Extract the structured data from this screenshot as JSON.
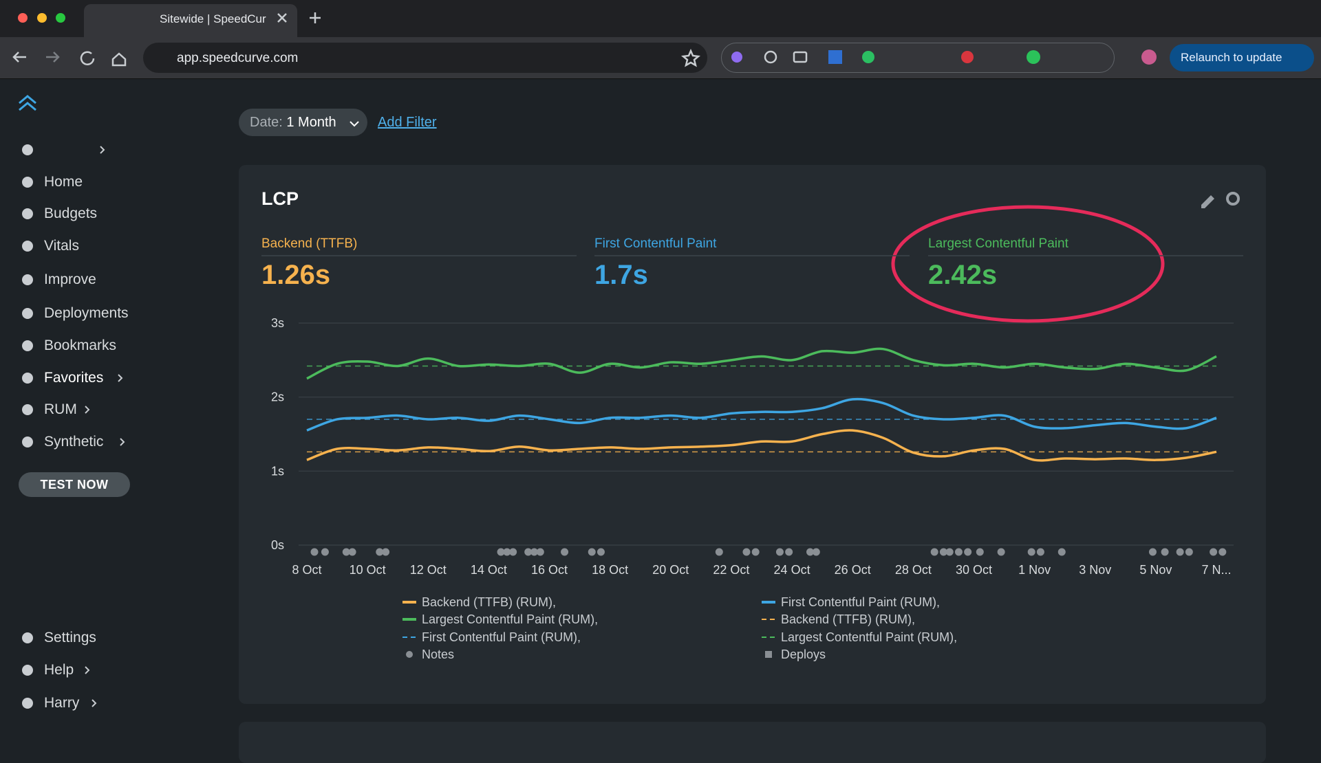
{
  "browser": {
    "tab_title": "Sitewide | SpeedCur",
    "url": "app.speedcurve.com",
    "relaunch": "Relaunch to update"
  },
  "sidebar": {
    "nav": [
      "Home",
      "Budgets",
      "Vitals",
      "Improve",
      "Deployments",
      "Bookmarks",
      "Favorites",
      "RUM",
      "Synthetic"
    ],
    "test_now": "TEST NOW",
    "footer": [
      "Settings",
      "Help",
      "Harry"
    ]
  },
  "filters": {
    "date_label": "Date:",
    "date_value": "1 Month",
    "add_filter": "Add Filter"
  },
  "card": {
    "title": "LCP",
    "metrics": [
      {
        "label": "Backend (TTFB)",
        "value": "1.26s",
        "color": "#f6b24e"
      },
      {
        "label": "First Contentful Paint",
        "value": "1.7s",
        "color": "#3ea6e3"
      },
      {
        "label": "Largest Contentful Paint",
        "value": "2.42s",
        "color": "#4cbb5c"
      }
    ]
  },
  "chart_data": {
    "type": "line",
    "categories": [
      "8 Oct",
      null,
      "10 Oct",
      null,
      "12 Oct",
      null,
      "14 Oct",
      null,
      "16 Oct",
      null,
      "18 Oct",
      null,
      "20 Oct",
      null,
      "22 Oct",
      null,
      "24 Oct",
      null,
      "26 Oct",
      null,
      "28 Oct",
      null,
      "30 Oct",
      null,
      "1 Nov",
      null,
      "3 Nov",
      null,
      "5 Nov",
      null,
      "7 N..."
    ],
    "series": [
      {
        "name": "Backend (TTFB) (RUM),",
        "color": "#f6b24e",
        "values": [
          1.15,
          1.3,
          1.3,
          1.28,
          1.32,
          1.3,
          1.27,
          1.33,
          1.28,
          1.3,
          1.32,
          1.3,
          1.32,
          1.33,
          1.35,
          1.4,
          1.4,
          1.5,
          1.55,
          1.45,
          1.25,
          1.2,
          1.28,
          1.3,
          1.15,
          1.17,
          1.16,
          1.17,
          1.15,
          1.18,
          1.26
        ]
      },
      {
        "name": "First Contentful Paint (RUM),",
        "color": "#3ea6e3",
        "values": [
          1.55,
          1.7,
          1.72,
          1.75,
          1.7,
          1.72,
          1.68,
          1.75,
          1.7,
          1.65,
          1.72,
          1.72,
          1.75,
          1.72,
          1.78,
          1.8,
          1.8,
          1.85,
          1.97,
          1.92,
          1.75,
          1.7,
          1.72,
          1.75,
          1.6,
          1.58,
          1.62,
          1.65,
          1.6,
          1.58,
          1.72
        ]
      },
      {
        "name": "Largest Contentful Paint (RUM),",
        "color": "#4cbb5c",
        "values": [
          2.25,
          2.45,
          2.48,
          2.42,
          2.52,
          2.42,
          2.44,
          2.42,
          2.45,
          2.33,
          2.45,
          2.4,
          2.47,
          2.45,
          2.5,
          2.55,
          2.5,
          2.62,
          2.6,
          2.65,
          2.5,
          2.43,
          2.45,
          2.4,
          2.45,
          2.4,
          2.38,
          2.45,
          2.4,
          2.36,
          2.55
        ]
      },
      {
        "name": "Backend (TTFB) (RUM),",
        "color": "#f6b24e",
        "dashed": true,
        "values": [
          1.26,
          1.26,
          1.26,
          1.26,
          1.26,
          1.26,
          1.26,
          1.26,
          1.26,
          1.26,
          1.26,
          1.26,
          1.26,
          1.26,
          1.26,
          1.26,
          1.26,
          1.26,
          1.26,
          1.26,
          1.26,
          1.26,
          1.26,
          1.26,
          1.26,
          1.26,
          1.26,
          1.26,
          1.26,
          1.26,
          1.26
        ]
      },
      {
        "name": "First Contentful Paint (RUM),",
        "color": "#3ea6e3",
        "dashed": true,
        "values": [
          1.7,
          1.7,
          1.7,
          1.7,
          1.7,
          1.7,
          1.7,
          1.7,
          1.7,
          1.7,
          1.7,
          1.7,
          1.7,
          1.7,
          1.7,
          1.7,
          1.7,
          1.7,
          1.7,
          1.7,
          1.7,
          1.7,
          1.7,
          1.7,
          1.7,
          1.7,
          1.7,
          1.7,
          1.7,
          1.7,
          1.7
        ]
      },
      {
        "name": "Largest Contentful Paint (RUM),",
        "color": "#4cbb5c",
        "dashed": true,
        "values": [
          2.42,
          2.42,
          2.42,
          2.42,
          2.42,
          2.42,
          2.42,
          2.42,
          2.42,
          2.42,
          2.42,
          2.42,
          2.42,
          2.42,
          2.42,
          2.42,
          2.42,
          2.42,
          2.42,
          2.42,
          2.42,
          2.42,
          2.42,
          2.42,
          2.42,
          2.42,
          2.42,
          2.42,
          2.42,
          2.42,
          2.42
        ]
      }
    ],
    "notes": {
      "name": "Notes",
      "color": "#8a8f94",
      "x": [
        0.25,
        0.6,
        1.3,
        1.5,
        2.4,
        2.6,
        6.4,
        6.6,
        6.8,
        7.3,
        7.5,
        7.7,
        8.5,
        9.4,
        9.7,
        13.6,
        14.5,
        14.8,
        15.6,
        15.9,
        16.6,
        16.8,
        20.7,
        21,
        21.2,
        21.5,
        21.8,
        22.2,
        22.9,
        23.9,
        24.2,
        24.9,
        27.9,
        28.3,
        28.8,
        29.1,
        29.9,
        30.2
      ]
    },
    "deploys": {
      "name": "Deploys",
      "color": "#8a8f94"
    },
    "ylim": [
      0,
      3
    ],
    "yticks": [
      {
        "value": 0,
        "label": "0s"
      },
      {
        "value": 1,
        "label": "1s"
      },
      {
        "value": 2,
        "label": "2s"
      },
      {
        "value": 3,
        "label": "3s"
      }
    ],
    "grid": true
  }
}
